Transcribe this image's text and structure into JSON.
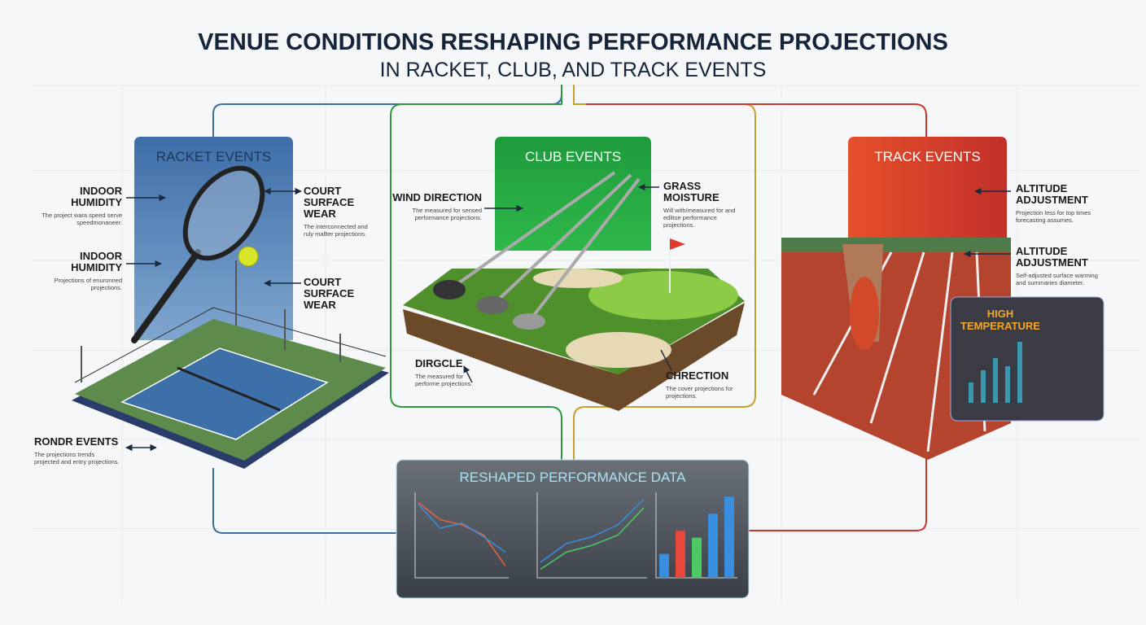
{
  "header": {
    "title": "VENUE CONDITIONS RESHAPING PERFORMANCE PROJECTIONS",
    "subtitle": "IN RACKET, CLUB, AND TRACK EVENTS"
  },
  "sections": [
    {
      "title": "RACKET EVENTS",
      "factors": [
        {
          "label": "INDOOR HUMIDITY",
          "description": "The project wara speed serve speedmonaneer."
        },
        {
          "label": "COURT SURFACE WEAR",
          "description": "The interconnected and ruly mallter projections."
        },
        {
          "label": "INDOOR HUMIDITY",
          "description": "Projections of enuronned projections."
        },
        {
          "label": "COURT SURFACE WEAR"
        },
        {
          "label": "RONDR EVENTS",
          "description": "The projections trends projected and entry projections."
        }
      ]
    },
    {
      "title": "CLUB EVENTS",
      "factors": [
        {
          "label": "WIND DIRECTION",
          "description": "The measured for sensed performance projections."
        },
        {
          "label": "GRASS MOISTURE",
          "description": "Will with/measured for and edlitse performance projections."
        },
        {
          "label": "DIRGCLE",
          "description": "The measured for performe projections."
        },
        {
          "label": "CHRECTION",
          "description": "The cover projections for projections."
        }
      ]
    },
    {
      "title": "TRACK EVENTS",
      "factors": [
        {
          "label": "ALTITUDE ADJUSTMENT",
          "description": "Projection less for top times forecasting assumes."
        },
        {
          "label": "ALTITUDE ADJUSTMENT",
          "description": "Self-adjusted surface warming and summaries diameter."
        }
      ],
      "highlight": "HIGH TEMPERATURE"
    }
  ],
  "data_panel": {
    "title": "RESHAPED PERFORMANCE DATA",
    "charts": [
      {
        "type": "line",
        "ylim": [
          0,
          100
        ],
        "series": [
          {
            "color": "#e8643c",
            "values": [
              88,
              68,
              62,
              50,
              14
            ]
          },
          {
            "color": "#3a8ee0",
            "values": [
              86,
              58,
              64,
              48,
              30
            ]
          }
        ]
      },
      {
        "type": "line",
        "ylim": [
          0,
          100
        ],
        "series": [
          {
            "color": "#4cc864",
            "values": [
              10,
              30,
              38,
              50,
              82
            ]
          },
          {
            "color": "#3a8ee0",
            "values": [
              18,
              40,
              48,
              62,
              92
            ]
          }
        ]
      },
      {
        "type": "bar",
        "ylim": [
          0,
          100
        ],
        "values": [
          28,
          55,
          47,
          75,
          95
        ],
        "colors": [
          "#3a8ee0",
          "#e8483c",
          "#4cc864",
          "#3a8ee0",
          "#3a8ee0"
        ]
      }
    ]
  }
}
